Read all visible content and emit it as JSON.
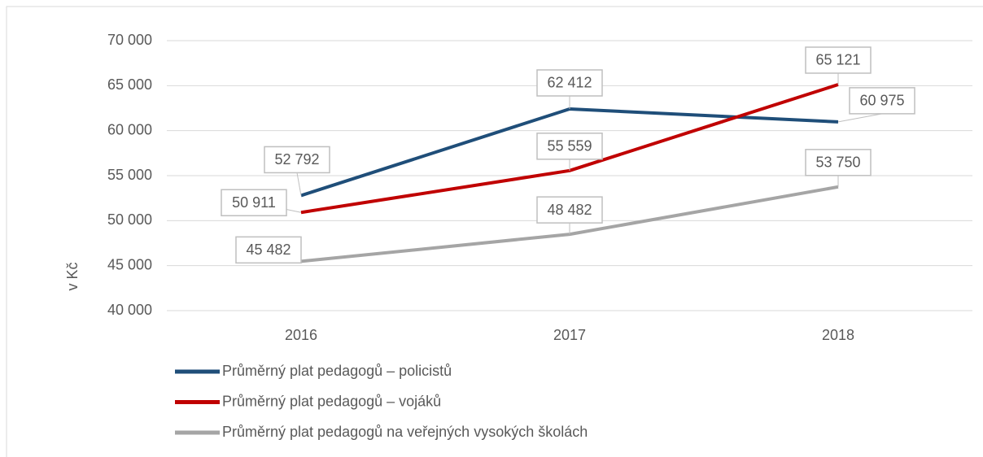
{
  "chart_data": {
    "type": "line",
    "y_label": "v Kč",
    "categories": [
      "2016",
      "2017",
      "2018"
    ],
    "series": [
      {
        "name": "Průměrný plat pedagogů – policistů",
        "color": "#1f4e79",
        "values": [
          52792,
          62412,
          60975
        ],
        "value_labels": [
          "52 792",
          "62 412",
          "60 975"
        ]
      },
      {
        "name": "Průměrný plat pedagogů – vojáků",
        "color": "#c00000",
        "values": [
          50911,
          55559,
          65121
        ],
        "value_labels": [
          "50 911",
          "55 559",
          "65 121"
        ]
      },
      {
        "name": "Průměrný plat pedagogů na veřejných vysokých školách",
        "color": "#a5a5a5",
        "values": [
          45482,
          48482,
          53750
        ],
        "value_labels": [
          "45 482",
          "48 482",
          "53 750"
        ]
      }
    ],
    "ylim": [
      40000,
      70000
    ],
    "yticks": [
      {
        "value": 40000,
        "label": "40 000"
      },
      {
        "value": 45000,
        "label": "45 000"
      },
      {
        "value": 50000,
        "label": "50 000"
      },
      {
        "value": 55000,
        "label": "55 000"
      },
      {
        "value": 60000,
        "label": "60 000"
      },
      {
        "value": 65000,
        "label": "65 000"
      },
      {
        "value": 70000,
        "label": "70 000"
      }
    ],
    "grid": true,
    "legend": "bottom"
  }
}
